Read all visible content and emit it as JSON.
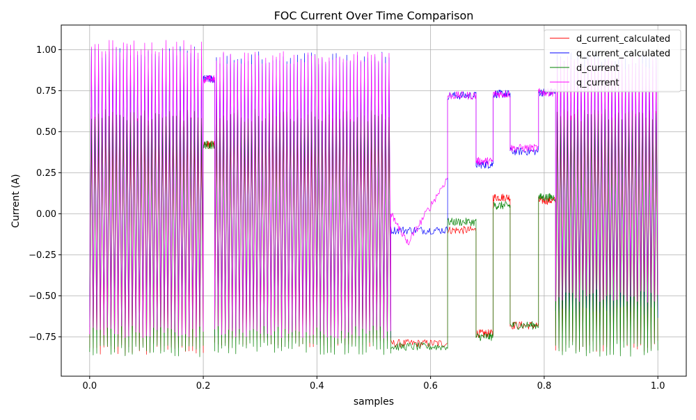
{
  "chart_data": {
    "type": "line",
    "title": "FOC Current Over Time Comparison",
    "xlabel": "samples",
    "ylabel": "Current (A)",
    "xlim": [
      -0.05,
      1.05
    ],
    "ylim": [
      -0.99,
      1.15
    ],
    "xticks": [
      0.0,
      0.2,
      0.4,
      0.6,
      0.8,
      1.0
    ],
    "xtick_labels": [
      "0.0",
      "0.2",
      "0.4",
      "0.6",
      "0.8",
      "1.0"
    ],
    "yticks": [
      1.0,
      0.75,
      0.5,
      0.25,
      0.0,
      -0.25,
      -0.5,
      -0.75
    ],
    "ytick_labels": [
      "1.00",
      "0.75",
      "0.50",
      "0.25",
      "0.00",
      "−0.25",
      "−0.50",
      "−0.75"
    ],
    "grid": true,
    "legend_position": "top-right",
    "series": [
      {
        "name": "d_current_calculated",
        "color": "#ff0000",
        "segments": [
          {
            "x_start": 0.0,
            "x_end": 0.2,
            "waveform": "oscillation",
            "cycles": 32,
            "high": 0.55,
            "low": -0.83
          },
          {
            "x_start": 0.2,
            "x_end": 0.22,
            "waveform": "level",
            "level": 0.42
          },
          {
            "x_start": 0.22,
            "x_end": 0.53,
            "waveform": "oscillation",
            "cycles": 50,
            "high": 0.55,
            "low": -0.78
          },
          {
            "x_start": 0.53,
            "x_end": 0.63,
            "waveform": "level",
            "level": -0.79
          },
          {
            "x_start": 0.63,
            "x_end": 0.68,
            "waveform": "level",
            "level": -0.1
          },
          {
            "x_start": 0.68,
            "x_end": 0.71,
            "waveform": "level",
            "level": -0.73
          },
          {
            "x_start": 0.71,
            "x_end": 0.74,
            "waveform": "level",
            "level": 0.1
          },
          {
            "x_start": 0.74,
            "x_end": 0.79,
            "waveform": "level",
            "level": -0.68
          },
          {
            "x_start": 0.79,
            "x_end": 0.82,
            "waveform": "level",
            "level": 0.08
          },
          {
            "x_start": 0.82,
            "x_end": 1.0,
            "waveform": "oscillation",
            "cycles": 30,
            "high": 0.6,
            "low": -0.8
          }
        ]
      },
      {
        "name": "q_current_calculated",
        "color": "#0000ff",
        "segments": [
          {
            "x_start": 0.0,
            "x_end": 0.2,
            "waveform": "oscillation",
            "cycles": 32,
            "high": 0.98,
            "low": -0.7
          },
          {
            "x_start": 0.2,
            "x_end": 0.22,
            "waveform": "level",
            "level": 0.82
          },
          {
            "x_start": 0.22,
            "x_end": 0.53,
            "waveform": "oscillation",
            "cycles": 50,
            "high": 0.95,
            "low": -0.72
          },
          {
            "x_start": 0.53,
            "x_end": 0.63,
            "waveform": "level",
            "level": -0.1
          },
          {
            "x_start": 0.63,
            "x_end": 0.68,
            "waveform": "level",
            "level": 0.72
          },
          {
            "x_start": 0.68,
            "x_end": 0.71,
            "waveform": "level",
            "level": 0.3
          },
          {
            "x_start": 0.71,
            "x_end": 0.74,
            "waveform": "level",
            "level": 0.73
          },
          {
            "x_start": 0.74,
            "x_end": 0.79,
            "waveform": "level",
            "level": 0.38
          },
          {
            "x_start": 0.79,
            "x_end": 0.82,
            "waveform": "level",
            "level": 0.74
          },
          {
            "x_start": 0.82,
            "x_end": 1.0,
            "waveform": "oscillation",
            "cycles": 30,
            "high": 0.95,
            "low": -0.6
          }
        ]
      },
      {
        "name": "d_current",
        "color": "#008000",
        "segments": [
          {
            "x_start": 0.0,
            "x_end": 0.2,
            "waveform": "oscillation",
            "cycles": 32,
            "high": 0.6,
            "low": -0.84
          },
          {
            "x_start": 0.2,
            "x_end": 0.22,
            "waveform": "level",
            "level": 0.42
          },
          {
            "x_start": 0.22,
            "x_end": 0.53,
            "waveform": "oscillation",
            "cycles": 50,
            "high": 0.6,
            "low": -0.82
          },
          {
            "x_start": 0.53,
            "x_end": 0.63,
            "waveform": "level",
            "level": -0.81
          },
          {
            "x_start": 0.63,
            "x_end": 0.68,
            "waveform": "level",
            "level": -0.05
          },
          {
            "x_start": 0.68,
            "x_end": 0.71,
            "waveform": "level",
            "level": -0.75
          },
          {
            "x_start": 0.71,
            "x_end": 0.74,
            "waveform": "level",
            "level": 0.05
          },
          {
            "x_start": 0.74,
            "x_end": 0.79,
            "waveform": "level",
            "level": -0.68
          },
          {
            "x_start": 0.79,
            "x_end": 0.82,
            "waveform": "level",
            "level": 0.1
          },
          {
            "x_start": 0.82,
            "x_end": 1.0,
            "waveform": "oscillation",
            "cycles": 30,
            "high": 0.6,
            "low": -0.83
          }
        ]
      },
      {
        "name": "q_current",
        "color": "#ff00ff",
        "segments": [
          {
            "x_start": 0.0,
            "x_end": 0.2,
            "waveform": "oscillation",
            "cycles": 32,
            "high": 1.02,
            "low": -0.72
          },
          {
            "x_start": 0.2,
            "x_end": 0.22,
            "waveform": "level",
            "level": 0.82
          },
          {
            "x_start": 0.22,
            "x_end": 0.53,
            "waveform": "oscillation",
            "cycles": 50,
            "high": 0.95,
            "low": -0.72
          },
          {
            "x_start": 0.53,
            "x_end": 0.56,
            "waveform": "ramp",
            "from": 0.0,
            "to": -0.18
          },
          {
            "x_start": 0.56,
            "x_end": 0.63,
            "waveform": "ramp",
            "from": -0.18,
            "to": 0.22
          },
          {
            "x_start": 0.63,
            "x_end": 0.68,
            "waveform": "level",
            "level": 0.72
          },
          {
            "x_start": 0.68,
            "x_end": 0.71,
            "waveform": "level",
            "level": 0.32
          },
          {
            "x_start": 0.71,
            "x_end": 0.74,
            "waveform": "level",
            "level": 0.73
          },
          {
            "x_start": 0.74,
            "x_end": 0.79,
            "waveform": "level",
            "level": 0.4
          },
          {
            "x_start": 0.79,
            "x_end": 0.82,
            "waveform": "level",
            "level": 0.74
          },
          {
            "x_start": 0.82,
            "x_end": 1.0,
            "waveform": "oscillation",
            "cycles": 30,
            "high": 0.92,
            "low": -0.5
          }
        ]
      }
    ]
  }
}
